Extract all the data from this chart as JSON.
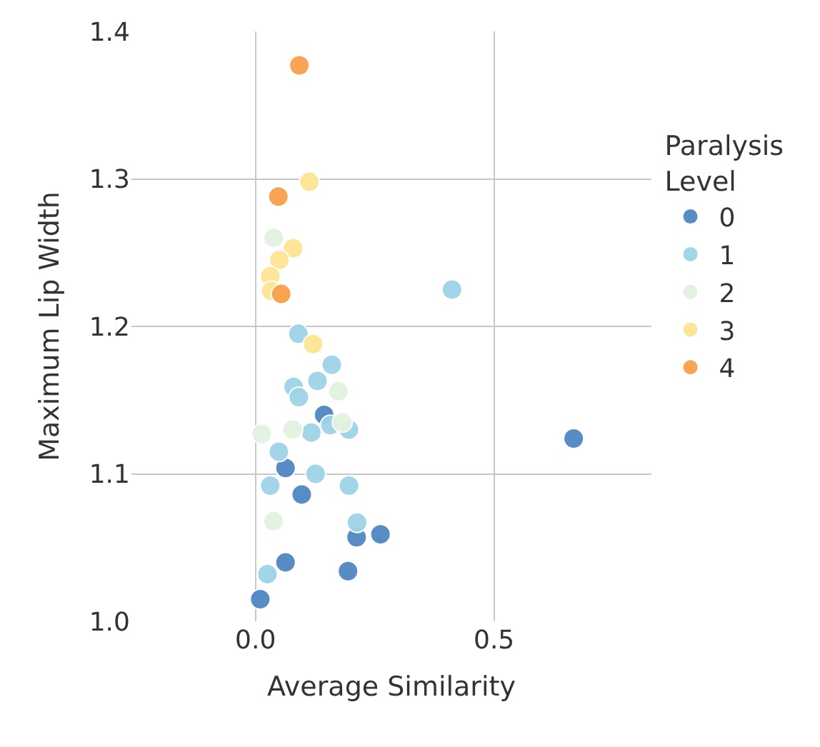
{
  "chart_data": {
    "type": "scatter",
    "xlabel": "Average Similarity",
    "ylabel": "Maximum Lip Width",
    "legend_title": "Paralysis Level",
    "xlim": [
      -0.26,
      0.83
    ],
    "ylim": [
      1.0,
      1.4
    ],
    "xticks": [
      {
        "value": 0,
        "label": "0.0"
      },
      {
        "value": 0.5,
        "label": "0.5"
      }
    ],
    "yticks": [
      {
        "value": 1.0,
        "label": "1.0"
      },
      1.1,
      1.2,
      1.3,
      1.4
    ],
    "grid": true,
    "legend": "right",
    "marker": "circle",
    "series": [
      {
        "name": "0",
        "color": "#4f86c1",
        "x": [
          0.144,
          0.063,
          0.097,
          0.212,
          0.262,
          0.063,
          0.194,
          0.01,
          0.667
        ],
        "values": [
          1.14,
          1.104,
          1.086,
          1.057,
          1.059,
          1.04,
          1.034,
          1.015,
          1.124
        ]
      },
      {
        "name": "1",
        "color": "#9ed3e6",
        "x": [
          0.09,
          0.16,
          0.13,
          0.08,
          0.091,
          0.157,
          0.196,
          0.117,
          0.049,
          0.126,
          0.031,
          0.196,
          0.213,
          0.025,
          0.412
        ],
        "values": [
          1.195,
          1.174,
          1.163,
          1.159,
          1.152,
          1.133,
          1.13,
          1.128,
          1.115,
          1.1,
          1.092,
          1.092,
          1.067,
          1.032,
          1.225
        ]
      },
      {
        "name": "2",
        "color": "#e3f2e1",
        "x": [
          0.038,
          0.174,
          0.182,
          0.013,
          0.078,
          0.038
        ],
        "values": [
          1.26,
          1.156,
          1.135,
          1.127,
          1.13,
          1.068
        ]
      },
      {
        "name": "3",
        "color": "#fde592",
        "x": [
          0.113,
          0.079,
          0.05,
          0.031,
          0.033,
          0.121
        ],
        "values": [
          1.298,
          1.253,
          1.245,
          1.234,
          1.224,
          1.188
        ]
      },
      {
        "name": "4",
        "color": "#f9a04c",
        "x": [
          0.092,
          0.048,
          0.054
        ],
        "values": [
          1.377,
          1.288,
          1.222
        ]
      }
    ]
  }
}
